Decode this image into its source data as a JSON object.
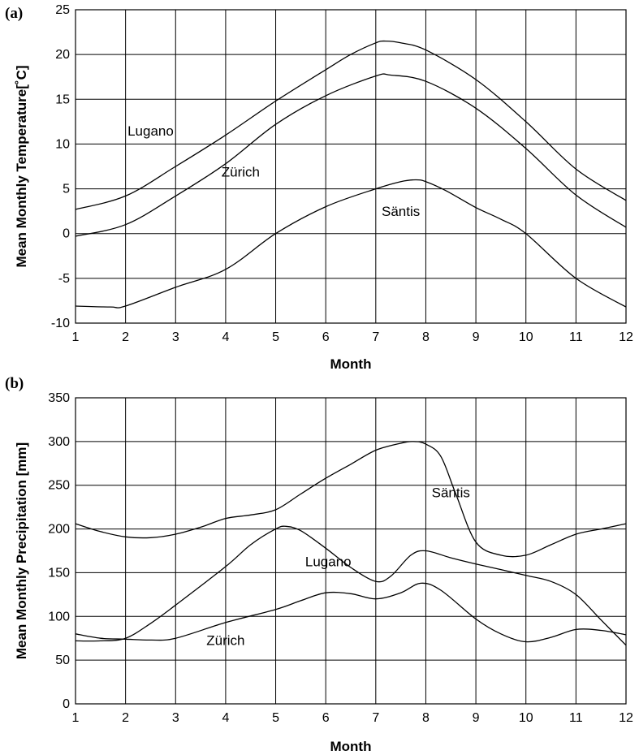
{
  "chart_data": [
    {
      "type": "line",
      "panel_label": "(a)",
      "xlabel": "Month",
      "ylabel": "Mean Monthly Temperature[˚C]",
      "xlim": [
        1,
        12
      ],
      "ylim": [
        -10,
        25
      ],
      "x_ticks": [
        1,
        2,
        3,
        4,
        5,
        6,
        7,
        8,
        9,
        10,
        11,
        12
      ],
      "y_ticks": [
        -10,
        -5,
        0,
        5,
        10,
        15,
        20,
        25
      ],
      "grid": true,
      "series": [
        {
          "name": "Lugano",
          "label_at": [
            2.5,
            11.5
          ],
          "points": [
            [
              1,
              2.7
            ],
            [
              2,
              4.2
            ],
            [
              3,
              7.5
            ],
            [
              4,
              11.0
            ],
            [
              5,
              14.8
            ],
            [
              6,
              18.3
            ],
            [
              6.5,
              20.0
            ],
            [
              7,
              21.3
            ],
            [
              7.2,
              21.5
            ],
            [
              7.5,
              21.3
            ],
            [
              8,
              20.5
            ],
            [
              9,
              17.2
            ],
            [
              10,
              12.5
            ],
            [
              11,
              7.2
            ],
            [
              12,
              3.7
            ]
          ]
        },
        {
          "name": "Zürich",
          "label_at": [
            4.3,
            6.9
          ],
          "points": [
            [
              1,
              -0.3
            ],
            [
              2,
              1.0
            ],
            [
              3,
              4.2
            ],
            [
              4,
              7.8
            ],
            [
              5,
              12.2
            ],
            [
              6,
              15.4
            ],
            [
              7,
              17.6
            ],
            [
              7.3,
              17.7
            ],
            [
              8,
              17.0
            ],
            [
              9,
              14.0
            ],
            [
              10,
              9.5
            ],
            [
              11,
              4.3
            ],
            [
              12,
              0.7
            ]
          ]
        },
        {
          "name": "Säntis",
          "label_at": [
            7.5,
            2.5
          ],
          "points": [
            [
              1,
              -8.1
            ],
            [
              1.7,
              -8.2
            ],
            [
              2,
              -8.1
            ],
            [
              3,
              -6.0
            ],
            [
              4,
              -4.0
            ],
            [
              5,
              0.0
            ],
            [
              6,
              3.0
            ],
            [
              7,
              5.0
            ],
            [
              7.5,
              5.8
            ],
            [
              7.8,
              6.0
            ],
            [
              8,
              5.8
            ],
            [
              8.4,
              4.8
            ],
            [
              9,
              2.9
            ],
            [
              9.5,
              1.6
            ],
            [
              10,
              0.0
            ],
            [
              11,
              -5.0
            ],
            [
              12,
              -8.2
            ]
          ]
        }
      ]
    },
    {
      "type": "line",
      "panel_label": "(b)",
      "xlabel": "Month",
      "ylabel": "Mean Monthly Precipitation [mm]",
      "xlim": [
        1,
        12
      ],
      "ylim": [
        0,
        350
      ],
      "x_ticks": [
        1,
        2,
        3,
        4,
        5,
        6,
        7,
        8,
        9,
        10,
        11,
        12
      ],
      "y_ticks": [
        0,
        50,
        100,
        150,
        200,
        250,
        300,
        350
      ],
      "grid": true,
      "series": [
        {
          "name": "Säntis",
          "label_at": [
            8.5,
            242
          ],
          "points": [
            [
              1,
              206
            ],
            [
              1.5,
              197
            ],
            [
              2,
              191
            ],
            [
              2.5,
              190
            ],
            [
              3,
              194
            ],
            [
              3.5,
              202
            ],
            [
              4,
              212
            ],
            [
              4.5,
              216
            ],
            [
              5,
              222
            ],
            [
              5.5,
              240
            ],
            [
              6,
              258
            ],
            [
              6.5,
              274
            ],
            [
              7,
              290
            ],
            [
              7.5,
              298
            ],
            [
              7.75,
              300
            ],
            [
              8,
              297
            ],
            [
              8.3,
              283
            ],
            [
              8.6,
              240
            ],
            [
              9,
              185
            ],
            [
              9.5,
              170
            ],
            [
              10,
              170
            ],
            [
              10.5,
              182
            ],
            [
              11,
              194
            ],
            [
              11.5,
              200
            ],
            [
              12,
              206
            ]
          ]
        },
        {
          "name": "Lugano",
          "label_at": [
            6.05,
            163
          ],
          "points": [
            [
              1,
              72
            ],
            [
              1.5,
              72
            ],
            [
              2,
              75
            ],
            [
              2.5,
              92
            ],
            [
              3,
              113
            ],
            [
              4,
              157
            ],
            [
              4.5,
              182
            ],
            [
              5,
              200
            ],
            [
              5.2,
              203
            ],
            [
              5.5,
              198
            ],
            [
              6,
              178
            ],
            [
              6.5,
              156
            ],
            [
              7,
              140
            ],
            [
              7.3,
              146
            ],
            [
              7.7,
              170
            ],
            [
              8,
              175
            ],
            [
              8.5,
              167
            ],
            [
              9,
              160
            ],
            [
              10,
              147
            ],
            [
              10.5,
              140
            ],
            [
              11,
              125
            ],
            [
              11.5,
              96
            ],
            [
              12,
              67
            ]
          ]
        },
        {
          "name": "Zürich",
          "label_at": [
            4.0,
            73
          ],
          "points": [
            [
              1,
              80
            ],
            [
              1.5,
              75
            ],
            [
              2,
              74
            ],
            [
              2.5,
              73
            ],
            [
              3,
              75
            ],
            [
              4,
              93
            ],
            [
              5,
              108
            ],
            [
              5.5,
              118
            ],
            [
              6,
              127
            ],
            [
              6.5,
              126
            ],
            [
              7,
              120
            ],
            [
              7.5,
              127
            ],
            [
              7.9,
              138
            ],
            [
              8.3,
              130
            ],
            [
              9,
              97
            ],
            [
              9.5,
              80
            ],
            [
              10,
              71
            ],
            [
              10.5,
              76
            ],
            [
              11,
              85
            ],
            [
              11.5,
              84
            ],
            [
              12,
              79
            ]
          ]
        }
      ]
    }
  ]
}
